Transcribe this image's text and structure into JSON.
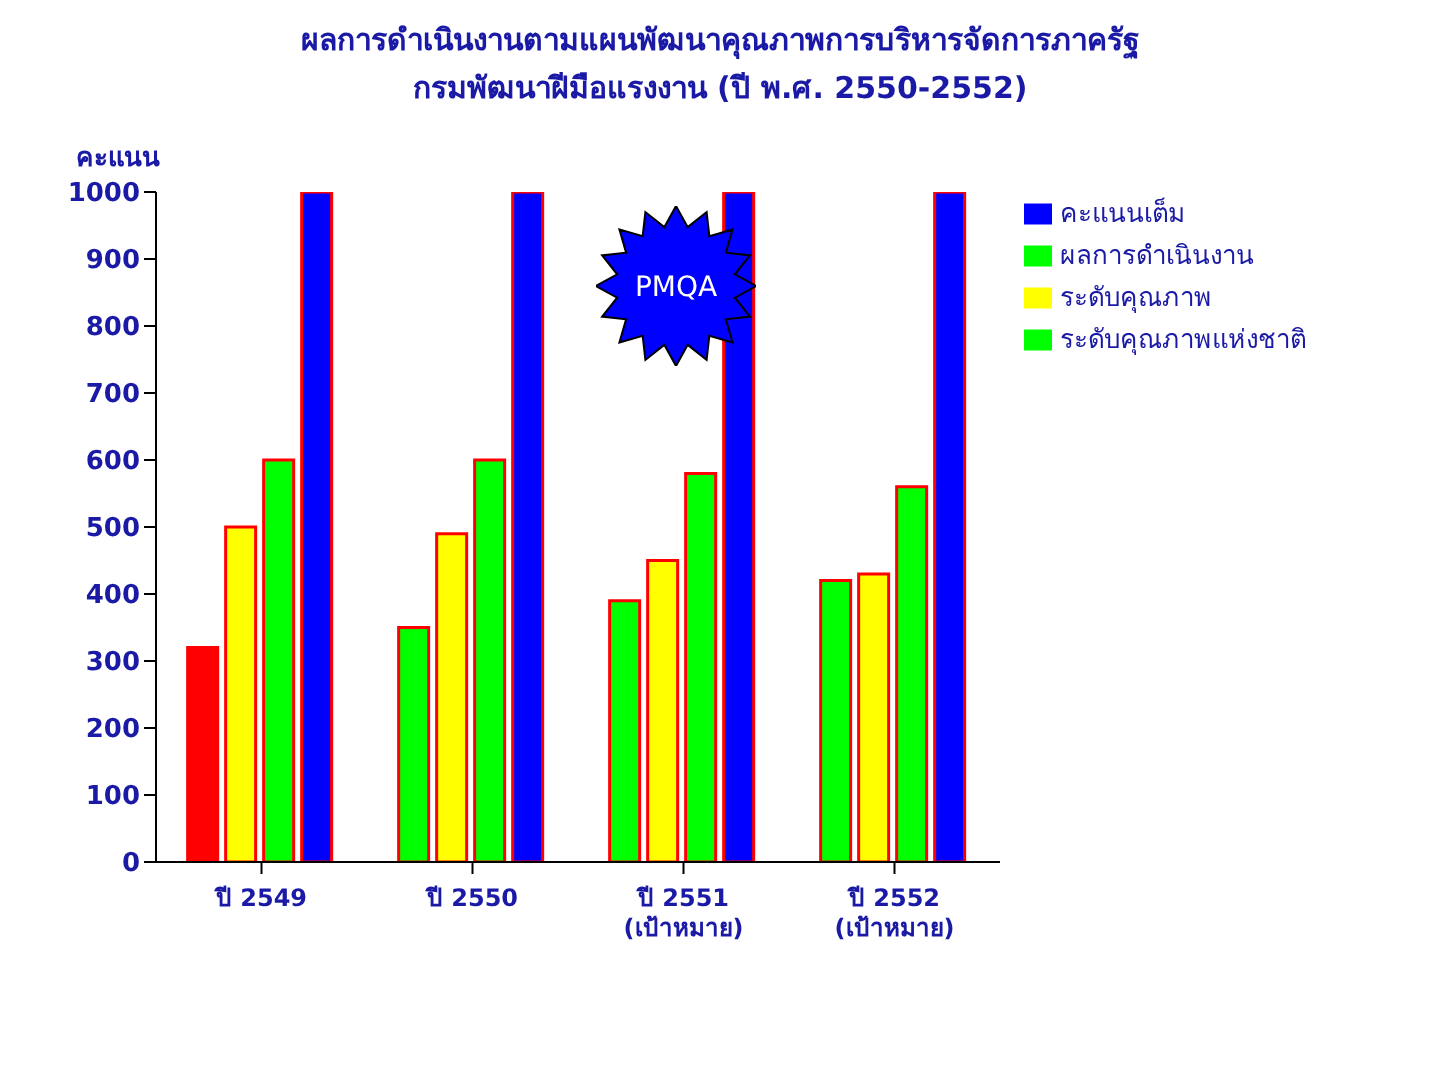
{
  "chart_data": {
    "type": "bar",
    "title": "ผลการดำเนินงานตามแผนพัฒนาคุณภาพการบริหารจัดการภาครัฐ",
    "subtitle": "กรมพัฒนาฝีมือแรงงาน (ปี พ.ศ. 2550-2552)",
    "ylabel": "คะแนน",
    "categories": [
      "ปี 2549",
      "ปี 2550",
      "ปี 2551\n(เป้าหมาย)",
      "ปี 2552\n(เป้าหมาย)"
    ],
    "series": [
      {
        "name": "ผลการดำเนินงาน",
        "color": "#00ff00",
        "colors": [
          "#ff0000",
          "#00ff00",
          "#00ff00",
          "#00ff00"
        ],
        "values": [
          320,
          350,
          390,
          420
        ]
      },
      {
        "name": "ระดับคุณภาพ",
        "color": "#ffff00",
        "values": [
          500,
          490,
          450,
          430
        ]
      },
      {
        "name": "ระดับคุณภาพแห่งชาติ",
        "color": "#00ff00",
        "values": [
          600,
          600,
          580,
          560
        ]
      },
      {
        "name": "คะแนนเต็ม",
        "color": "#0000ff",
        "values": [
          1000,
          1000,
          1000,
          1000
        ]
      }
    ],
    "ylim": [
      0,
      1000
    ],
    "yticks": [
      0,
      100,
      200,
      300,
      400,
      500,
      600,
      700,
      800,
      900,
      1000
    ],
    "legend": "top right",
    "annotations": [
      "PMQA"
    ]
  }
}
